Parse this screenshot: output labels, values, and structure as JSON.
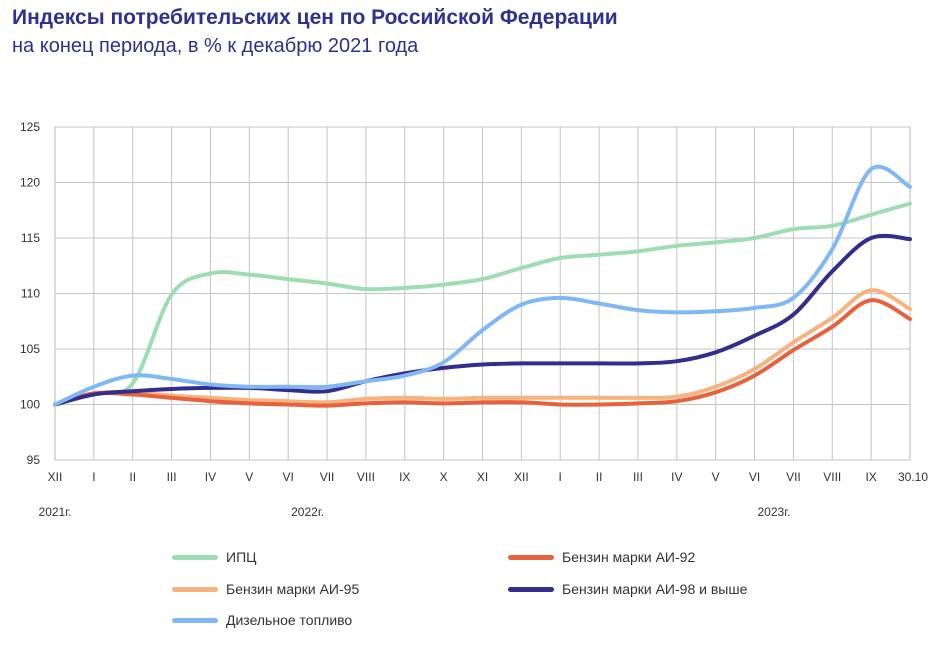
{
  "title": "Индексы потребительских цен по Российской Федерации",
  "subtitle": "на конец периода, в % к декабрю 2021 года",
  "chart_data": {
    "type": "line",
    "x": [
      "XII",
      "I",
      "II",
      "III",
      "IV",
      "V",
      "VI",
      "VII",
      "VIII",
      "IX",
      "X",
      "XI",
      "XII",
      "I",
      "II",
      "III",
      "IV",
      "V",
      "VI",
      "VII",
      "VIII",
      "IX",
      "30.10"
    ],
    "year_labels": [
      {
        "label": "2021г.",
        "index": 0
      },
      {
        "label": "2022г.",
        "index": 6.5
      },
      {
        "label": "2023г.",
        "index": 18.5
      }
    ],
    "ylim": [
      95,
      125
    ],
    "yticks": [
      95,
      100,
      105,
      110,
      115,
      120,
      125
    ],
    "grid": true,
    "series": [
      {
        "name": "ИПЦ",
        "color": "#9fdcb4",
        "values": [
          100.0,
          101.0,
          101.9,
          109.9,
          111.8,
          111.7,
          111.3,
          110.9,
          110.4,
          110.5,
          110.8,
          111.3,
          112.3,
          113.2,
          113.5,
          113.8,
          114.3,
          114.6,
          115.0,
          115.8,
          116.1,
          117.1,
          118.1
        ]
      },
      {
        "name": "Бензин марки АИ-92",
        "color": "#e8613c",
        "values": [
          100.0,
          101.0,
          100.9,
          100.6,
          100.3,
          100.1,
          100.0,
          99.9,
          100.1,
          100.2,
          100.1,
          100.2,
          100.2,
          100.0,
          100.0,
          100.1,
          100.3,
          101.1,
          102.6,
          104.9,
          107.0,
          109.4,
          107.7
        ]
      },
      {
        "name": "Бензин марки АИ-95",
        "color": "#f7b27e",
        "values": [
          100.0,
          101.0,
          101.1,
          100.8,
          100.6,
          100.4,
          100.3,
          100.2,
          100.5,
          100.6,
          100.5,
          100.6,
          100.6,
          100.6,
          100.6,
          100.6,
          100.7,
          101.6,
          103.2,
          105.6,
          107.8,
          110.3,
          108.6
        ]
      },
      {
        "name": "Бензин марки АИ-98 и выше",
        "color": "#332e8c",
        "values": [
          100.0,
          100.9,
          101.2,
          101.4,
          101.5,
          101.5,
          101.3,
          101.2,
          102.1,
          102.8,
          103.3,
          103.6,
          103.7,
          103.7,
          103.7,
          103.7,
          103.9,
          104.7,
          106.2,
          108.1,
          112.0,
          115.0,
          114.9
        ]
      },
      {
        "name": "Дизельное топливо",
        "color": "#7fb8f5",
        "values": [
          100.0,
          101.6,
          102.6,
          102.3,
          101.8,
          101.6,
          101.6,
          101.6,
          102.1,
          102.6,
          103.8,
          106.7,
          109.0,
          109.6,
          109.1,
          108.5,
          108.3,
          108.4,
          108.7,
          109.6,
          114.0,
          121.2,
          119.6
        ]
      }
    ]
  },
  "legend": [
    {
      "name": "ИПЦ",
      "color": "#9fdcb4",
      "pos": "left-1"
    },
    {
      "name": "Бензин марки АИ-95",
      "color": "#f7b27e",
      "pos": "left-2"
    },
    {
      "name": "Дизельное топливо",
      "color": "#7fb8f5",
      "pos": "left-3"
    },
    {
      "name": "Бензин марки АИ-92",
      "color": "#e8613c",
      "pos": "right-1"
    },
    {
      "name": "Бензин марки АИ-98 и выше",
      "color": "#332e8c",
      "pos": "right-2"
    }
  ]
}
